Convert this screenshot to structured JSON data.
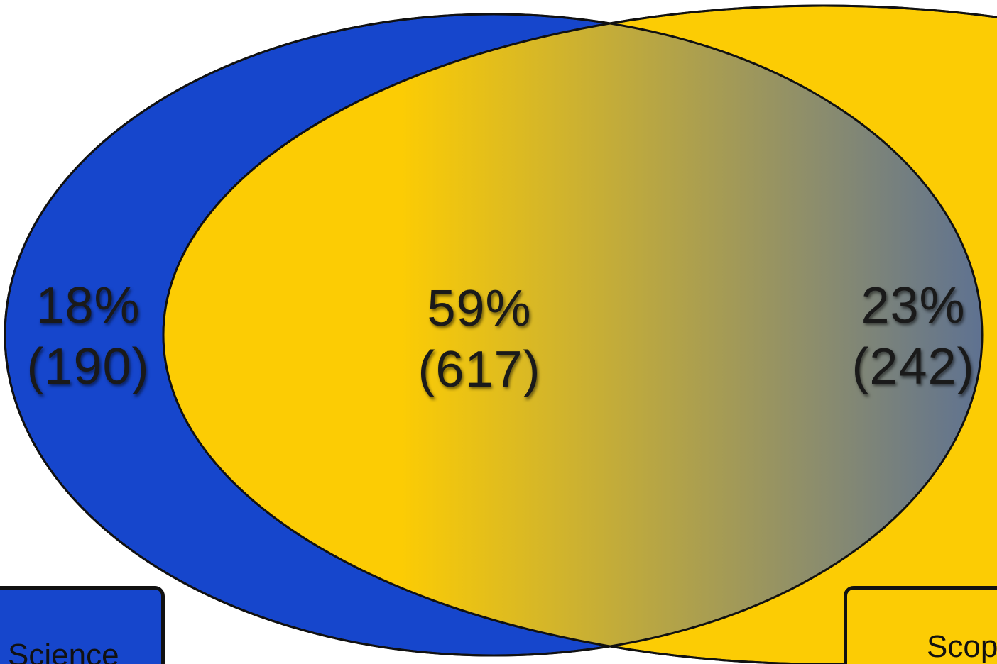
{
  "colors": {
    "set_a": "#1646CC",
    "set_b": "#FCCC04",
    "outline": "#111111"
  },
  "sets": [
    {
      "name": "Science",
      "color": "#1646CC"
    },
    {
      "name": "Scop",
      "color": "#FCCC04"
    }
  ],
  "regions": {
    "left": {
      "percent": "18%",
      "count": "(190)"
    },
    "overlap": {
      "percent": "59%",
      "count": "(617)"
    },
    "right": {
      "percent": "23%",
      "count": "(242)"
    }
  }
}
